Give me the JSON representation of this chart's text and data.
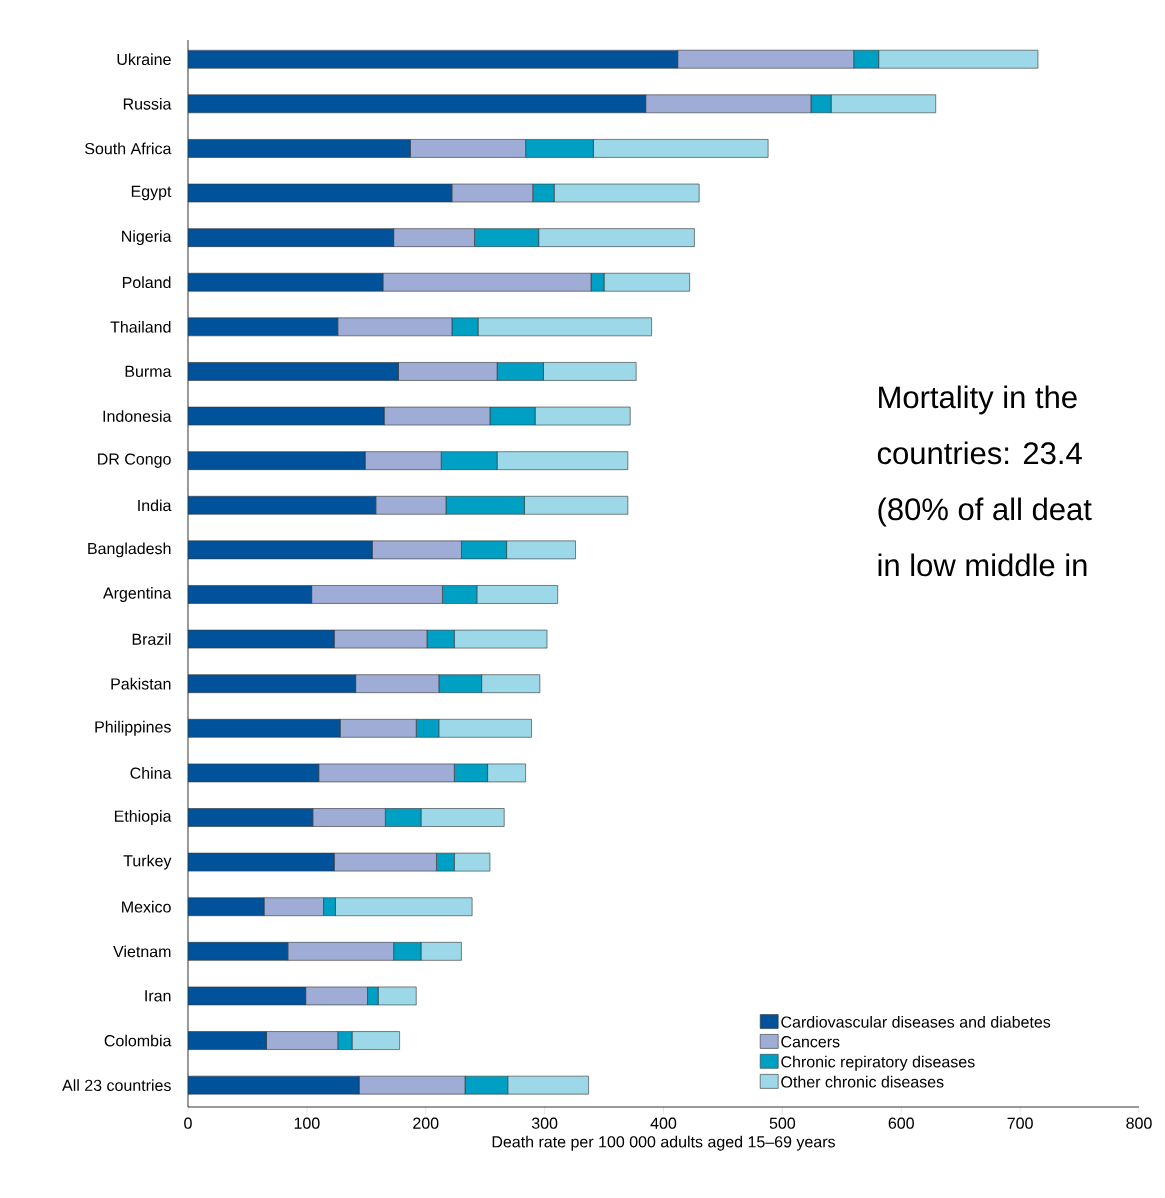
{
  "chart_data": {
    "type": "bar",
    "orientation": "horizontal",
    "stacked": true,
    "categories": [
      "Ukraine",
      "Russia",
      "South Africa",
      "Egypt",
      "Nigeria",
      "Poland",
      "Thailand",
      "Burma",
      "Indonesia",
      "DR Congo",
      "India",
      "Bangladesh",
      "Argentina",
      "Brazil",
      "Pakistan",
      "Philippines",
      "China",
      "Ethiopia",
      "Turkey",
      "Mexico",
      "Vietnam",
      "Iran",
      "Colombia",
      "All 23 countries"
    ],
    "series": [
      {
        "name": "Cardiovascular diseases and diabetes",
        "color": "#00529b",
        "values": [
          412,
          385,
          187,
          222,
          173,
          164,
          126,
          177,
          165,
          149,
          158,
          155,
          104,
          123,
          141,
          128,
          110,
          105,
          123,
          64,
          84,
          99,
          66,
          144
        ]
      },
      {
        "name": "Cancers",
        "color": "#9fadd6",
        "values": [
          148,
          139,
          97,
          68,
          68,
          175,
          96,
          83,
          89,
          64,
          59,
          75,
          110,
          78,
          70,
          64,
          114,
          61,
          86,
          50,
          89,
          52,
          60,
          89
        ]
      },
      {
        "name": "Chronic repiratory diseases",
        "color": "#00a0c4",
        "values": [
          21,
          17,
          57,
          18,
          54,
          11,
          22,
          39,
          38,
          47,
          66,
          38,
          29,
          23,
          36,
          19,
          28,
          30,
          15,
          10,
          23,
          9,
          12,
          36
        ]
      },
      {
        "name": "Other chronic diseases",
        "color": "#9dd8e8",
        "values": [
          134,
          88,
          147,
          122,
          131,
          72,
          146,
          78,
          80,
          110,
          87,
          58,
          68,
          78,
          49,
          78,
          32,
          70,
          30,
          115,
          34,
          32,
          40,
          68
        ]
      }
    ],
    "xlim": [
      0,
      800
    ],
    "xticks": [
      0,
      100,
      200,
      300,
      400,
      500,
      600,
      700,
      800
    ],
    "xlabel": "Death rate per 100 000 adults aged 15–69 years",
    "legend": "bottom right",
    "grid": false,
    "annotations": [
      "Mortality in the",
      "countries: 23.4",
      "(80% of all deat",
      "in low middle in"
    ]
  }
}
